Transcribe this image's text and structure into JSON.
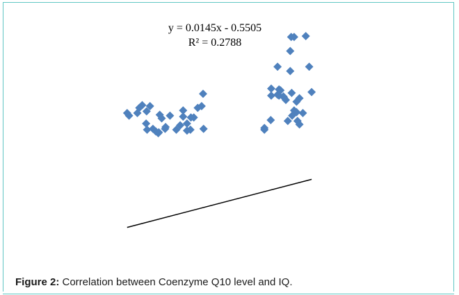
{
  "chart_data": {
    "type": "scatter",
    "title": "",
    "xlabel": "",
    "ylabel": "",
    "grid": false,
    "legend": "none",
    "xlim": [
      60,
      130
    ],
    "ylim": [
      0,
      3
    ],
    "marker_color": "#4f81bd",
    "trendline_color": "#000000",
    "trendline": {
      "equation": "y = 0.0145x - 0.5505",
      "r_squared": "R² = 0.2788",
      "slope": 0.0145,
      "intercept": -0.5505
    },
    "points": [
      {
        "x": 109.1,
        "y": 2.72
      },
      {
        "x": 109.7,
        "y": 2.72
      },
      {
        "x": 112.1,
        "y": 2.73
      },
      {
        "x": 108.9,
        "y": 2.56
      },
      {
        "x": 106.3,
        "y": 2.38
      },
      {
        "x": 112.8,
        "y": 2.38
      },
      {
        "x": 108.9,
        "y": 2.33
      },
      {
        "x": 105.0,
        "y": 2.13
      },
      {
        "x": 106.6,
        "y": 2.12
      },
      {
        "x": 106.9,
        "y": 2.11
      },
      {
        "x": 113.3,
        "y": 2.09
      },
      {
        "x": 109.2,
        "y": 2.08
      },
      {
        "x": 105.0,
        "y": 2.05
      },
      {
        "x": 106.3,
        "y": 2.06
      },
      {
        "x": 107.5,
        "y": 2.04
      },
      {
        "x": 106.6,
        "y": 2.05
      },
      {
        "x": 110.8,
        "y": 2.02
      },
      {
        "x": 107.6,
        "y": 2.03
      },
      {
        "x": 108.0,
        "y": 2.0
      },
      {
        "x": 110.2,
        "y": 1.98
      },
      {
        "x": 91.0,
        "y": 2.07
      },
      {
        "x": 78.5,
        "y": 1.94
      },
      {
        "x": 80.1,
        "y": 1.93
      },
      {
        "x": 90.7,
        "y": 1.93
      },
      {
        "x": 89.9,
        "y": 1.91
      },
      {
        "x": 77.9,
        "y": 1.91
      },
      {
        "x": 79.4,
        "y": 1.87
      },
      {
        "x": 86.9,
        "y": 1.88
      },
      {
        "x": 75.4,
        "y": 1.85
      },
      {
        "x": 77.5,
        "y": 1.85
      },
      {
        "x": 109.7,
        "y": 1.88
      },
      {
        "x": 110.2,
        "y": 1.86
      },
      {
        "x": 111.5,
        "y": 1.85
      },
      {
        "x": 82.1,
        "y": 1.83
      },
      {
        "x": 84.2,
        "y": 1.82
      },
      {
        "x": 75.8,
        "y": 1.82
      },
      {
        "x": 86.9,
        "y": 1.81
      },
      {
        "x": 109.3,
        "y": 1.82
      },
      {
        "x": 88.5,
        "y": 1.8
      },
      {
        "x": 82.5,
        "y": 1.79
      },
      {
        "x": 89.1,
        "y": 1.8
      },
      {
        "x": 104.9,
        "y": 1.77
      },
      {
        "x": 108.4,
        "y": 1.76
      },
      {
        "x": 110.4,
        "y": 1.76
      },
      {
        "x": 110.8,
        "y": 1.72
      },
      {
        "x": 79.3,
        "y": 1.73
      },
      {
        "x": 87.7,
        "y": 1.73
      },
      {
        "x": 83.3,
        "y": 1.69
      },
      {
        "x": 86.3,
        "y": 1.71
      },
      {
        "x": 83.2,
        "y": 1.67
      },
      {
        "x": 79.5,
        "y": 1.66
      },
      {
        "x": 80.7,
        "y": 1.67
      },
      {
        "x": 85.5,
        "y": 1.66
      },
      {
        "x": 88.4,
        "y": 1.66
      },
      {
        "x": 87.7,
        "y": 1.65
      },
      {
        "x": 91.1,
        "y": 1.67
      },
      {
        "x": 81.9,
        "y": 1.63
      },
      {
        "x": 81.3,
        "y": 1.64
      },
      {
        "x": 81.8,
        "y": 1.62
      },
      {
        "x": 103.6,
        "y": 1.68
      },
      {
        "x": 103.6,
        "y": 1.66
      }
    ]
  },
  "caption": {
    "label": "Figure 2:",
    "text": " Correlation between Coenzyme Q10 level and IQ."
  }
}
